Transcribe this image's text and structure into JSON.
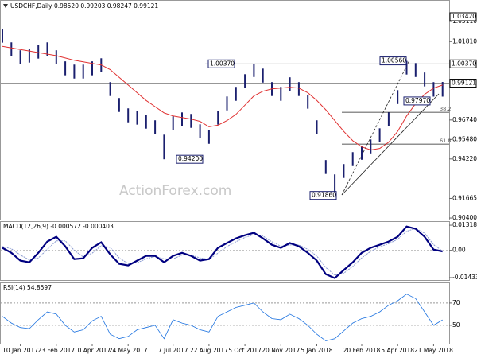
{
  "chart_data": [
    {
      "type": "ohlc",
      "title": "USDCHF,Daily  0.98520 0.99203 0.98247 0.99121",
      "watermark": "ActionForex.com",
      "color": "#1a1f6e",
      "categories": [
        null,
        null,
        "10 Jan 2017",
        null,
        null,
        null,
        "23 Feb 2017",
        null,
        null,
        null,
        "10 Apr 2017",
        null,
        null,
        null,
        "24 May 2017",
        null,
        null,
        null,
        null,
        "7 Jul 2017",
        null,
        null,
        null,
        "22 Aug 2017",
        null,
        null,
        null,
        "5 Oct 2017",
        null,
        null,
        null,
        "20 Nov 2017",
        null,
        null,
        null,
        "5 Jan 2018",
        null,
        null,
        null,
        null,
        "20 Feb 2018",
        null,
        null,
        null,
        "5 Apr 2018",
        null,
        null,
        null,
        "21 May 2018",
        null
      ],
      "high": [
        1.0264,
        1.0176,
        1.0125,
        1.0135,
        1.0161,
        1.0176,
        1.0125,
        1.0053,
        1.0032,
        1.0032,
        1.0053,
        1.0073,
        0.9919,
        0.9816,
        0.9749,
        0.9734,
        0.9708,
        0.9672,
        0.9579,
        0.9698,
        0.9723,
        0.9713,
        0.9646,
        0.961,
        0.9734,
        0.9826,
        0.9888,
        0.997,
        1.0037,
        1.0006,
        0.9919,
        0.9888,
        0.995,
        0.9919,
        0.9837,
        0.9672,
        0.9415,
        0.9322,
        0.9389,
        0.9466,
        0.9507,
        0.9548,
        0.962,
        0.9723,
        0.9867,
        1.0056,
        1.0042,
        0.9981,
        0.9919,
        0.992
      ],
      "low": [
        1.0174,
        1.0086,
        1.0035,
        1.0045,
        1.0071,
        1.0086,
        1.0035,
        0.9963,
        0.9942,
        0.9942,
        0.9963,
        0.9983,
        0.9829,
        0.9726,
        0.9659,
        0.9644,
        0.9618,
        0.9582,
        0.942,
        0.9608,
        0.9633,
        0.9623,
        0.9556,
        0.952,
        0.9644,
        0.9736,
        0.9798,
        0.988,
        0.9952,
        0.9916,
        0.9829,
        0.9798,
        0.986,
        0.9829,
        0.9747,
        0.9582,
        0.9325,
        0.9186,
        0.9299,
        0.9376,
        0.9417,
        0.9458,
        0.953,
        0.9633,
        0.9777,
        0.9968,
        0.9952,
        0.9891,
        0.9825,
        0.9825
      ],
      "lines": [
        {
          "color": "#e03030",
          "values": [
            1.015,
            1.014,
            1.013,
            1.012,
            1.011,
            1.01,
            1.009,
            1.0075,
            1.006,
            1.005,
            1.004,
            1.003,
            1.0,
            0.995,
            0.99,
            0.985,
            0.98,
            0.976,
            0.972,
            0.97,
            0.969,
            0.968,
            0.9665,
            0.963,
            0.964,
            0.967,
            0.971,
            0.977,
            0.983,
            0.986,
            0.9875,
            0.988,
            0.9885,
            0.988,
            0.985,
            0.98,
            0.974,
            0.967,
            0.96,
            0.954,
            0.95,
            0.948,
            0.949,
            0.953,
            0.96,
            0.97,
            0.978,
            0.984,
            0.988,
            0.99
          ]
        }
      ],
      "ylim": [
        0.903,
        1.045
      ],
      "yticks": [
        {
          "value": 1.0311,
          "label": "1.03110"
        },
        {
          "value": 1.0181,
          "label": "1.01810"
        },
        {
          "value": 0.9674,
          "label": "0.96740"
        },
        {
          "value": 0.9548,
          "label": "0.95480"
        },
        {
          "value": 0.9422,
          "label": "0.94220"
        },
        {
          "value": 0.91665,
          "label": "0.91665"
        },
        {
          "value": 0.904,
          "label": "0.90400"
        }
      ],
      "levels": [
        {
          "label": "1.03420",
          "value": 1.0342
        },
        {
          "label": "1.00370",
          "value": 1.0037
        },
        {
          "label": "0.99121",
          "value": 0.99121
        }
      ],
      "fib": [
        {
          "label": "38.2",
          "value": 0.9724
        },
        {
          "label": "61.8",
          "value": 0.9518
        }
      ],
      "annotations": [
        {
          "label": "1.00370",
          "value": 1.0037
        },
        {
          "label": "0.94200",
          "value": 0.942
        },
        {
          "label": "0.91860",
          "value": 0.9186
        },
        {
          "label": "1.00560",
          "value": 1.0056
        },
        {
          "label": "0.97970",
          "value": 0.9797
        }
      ]
    },
    {
      "type": "macd",
      "title": "MACD(12,26,9) -0.000572 -0.000403",
      "color": "#000080",
      "signal_color": "#8a9ad0",
      "macd": [
        0.0013,
        -0.0013,
        -0.0054,
        -0.0063,
        -0.0013,
        0.0046,
        0.0071,
        0.0021,
        -0.0046,
        -0.0042,
        0.0013,
        0.0042,
        -0.0021,
        -0.0071,
        -0.0079,
        -0.0054,
        -0.0029,
        -0.0029,
        -0.0063,
        -0.0029,
        -0.0013,
        -0.0029,
        -0.0054,
        -0.0046,
        0.0013,
        0.0038,
        0.0063,
        0.0079,
        0.0092,
        0.0063,
        0.0029,
        0.0013,
        0.0038,
        0.0021,
        -0.0013,
        -0.0054,
        -0.0125,
        -0.0146,
        -0.0104,
        -0.0063,
        -0.0013,
        0.0013,
        0.0029,
        0.0046,
        0.0071,
        0.0125,
        0.0113,
        0.0071,
        0.0004,
        -0.000572
      ],
      "signal": [
        0.002,
        0.0008,
        -0.0025,
        -0.005,
        -0.004,
        0.0005,
        0.005,
        0.005,
        0.0,
        -0.0035,
        -0.0015,
        0.0025,
        0.0015,
        -0.004,
        -0.007,
        -0.0065,
        -0.0045,
        -0.0032,
        -0.0045,
        -0.0045,
        -0.0025,
        -0.0025,
        -0.004,
        -0.0048,
        -0.0015,
        0.002,
        0.0045,
        0.0068,
        0.0082,
        0.0075,
        0.0045,
        0.0022,
        0.0028,
        0.0028,
        0.0005,
        -0.003,
        -0.009,
        -0.013,
        -0.012,
        -0.0085,
        -0.004,
        -0.0005,
        0.0018,
        0.0035,
        0.0058,
        0.01,
        0.0115,
        0.009,
        0.003,
        -0.000403
      ],
      "ylim": [
        -0.0156,
        0.0153
      ],
      "yticks": [
        0.013184,
        {
          "value": 0,
          "label": "0.00"
        },
        -0.014339
      ]
    },
    {
      "type": "rsi",
      "title": "RSI(14) 54.8597",
      "color": "#1e73e0",
      "values": [
        58,
        52,
        48,
        47,
        55,
        62,
        60,
        50,
        44,
        46,
        54,
        58,
        42,
        38,
        40,
        46,
        48,
        50,
        38,
        55,
        52,
        50,
        46,
        44,
        58,
        62,
        66,
        68,
        70,
        62,
        56,
        55,
        60,
        56,
        50,
        42,
        36,
        38,
        45,
        52,
        56,
        58,
        62,
        68,
        72,
        78,
        74,
        62,
        50,
        54.8597
      ],
      "ylim": [
        33.5,
        88.5
      ],
      "yticks": [
        70,
        50
      ]
    }
  ]
}
